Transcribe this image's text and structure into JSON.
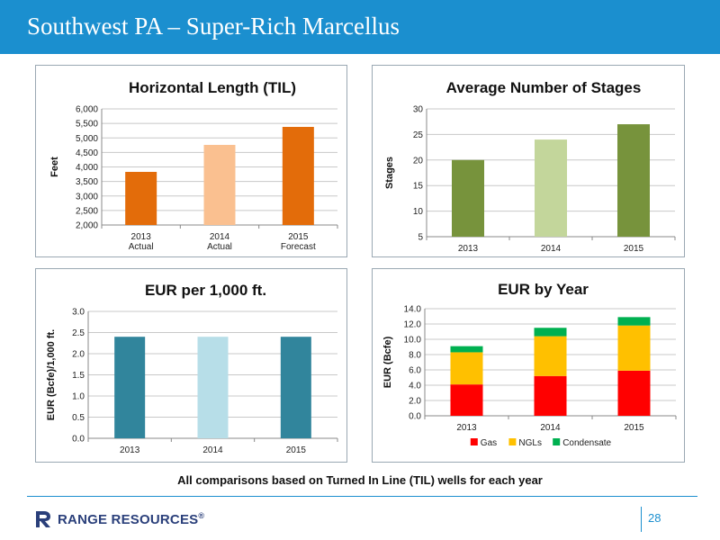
{
  "header": {
    "title": "Southwest PA – Super-Rich Marcellus"
  },
  "footnote": "All comparisons based on Turned In Line (TIL) wells for each year",
  "footer": {
    "brand": "RANGE RESOURCES",
    "brand_mark": "®",
    "page_number": "28"
  },
  "colors": {
    "header_blue": "#1B8FCF",
    "orange_dark": "#E36C0A",
    "orange_light": "#FAC090",
    "green_dark": "#77933C",
    "green_light": "#C3D69B",
    "teal_dark": "#31859C",
    "teal_light": "#B7DEE8",
    "gas": "#FF0000",
    "ngls": "#FFC000",
    "condensate": "#00B050"
  },
  "chart_data": [
    {
      "id": "til",
      "type": "bar",
      "title": "Horizontal Length (TIL)",
      "ylabel": "Feet",
      "xlabel": "",
      "categories": [
        "2013\nActual",
        "2014\nActual",
        "2015\nForecast"
      ],
      "values": [
        3830,
        4760,
        5380
      ],
      "bar_colors": [
        "#E36C0A",
        "#FAC090",
        "#E36C0A"
      ],
      "ylim": [
        2000,
        6000
      ],
      "yticks": [
        2000,
        2500,
        3000,
        3500,
        4000,
        4500,
        5000,
        5500,
        6000
      ],
      "ytick_labels": [
        "2,000",
        "2,500",
        "3,000",
        "3,500",
        "4,000",
        "4,500",
        "5,000",
        "5,500",
        "6,000"
      ],
      "grid": true
    },
    {
      "id": "stages",
      "type": "bar",
      "title": "Average Number of Stages",
      "ylabel": "Stages",
      "xlabel": "",
      "categories": [
        "2013",
        "2014",
        "2015"
      ],
      "values": [
        20,
        24,
        27
      ],
      "bar_colors": [
        "#77933C",
        "#C3D69B",
        "#77933C"
      ],
      "ylim": [
        5,
        30
      ],
      "yticks": [
        5,
        10,
        15,
        20,
        25,
        30
      ],
      "ytick_labels": [
        "5",
        "10",
        "15",
        "20",
        "25",
        "30"
      ],
      "grid": true
    },
    {
      "id": "eur1000",
      "type": "bar",
      "title": "EUR per 1,000 ft.",
      "ylabel": "EUR (Bcfe)/1,000 ft.",
      "xlabel": "",
      "categories": [
        "2013",
        "2014",
        "2015"
      ],
      "values": [
        2.4,
        2.4,
        2.4
      ],
      "bar_colors": [
        "#31859C",
        "#B7DEE8",
        "#31859C"
      ],
      "ylim": [
        0,
        3
      ],
      "yticks": [
        0,
        0.5,
        1,
        1.5,
        2,
        2.5,
        3
      ],
      "ytick_labels": [
        "0.0",
        "0.5",
        "1.0",
        "1.5",
        "2.0",
        "2.5",
        "3.0"
      ],
      "grid": true
    },
    {
      "id": "euryear",
      "type": "bar",
      "stacked": true,
      "title": "EUR by Year",
      "ylabel": "EUR (Bcfe)",
      "xlabel": "",
      "categories": [
        "2013",
        "2014",
        "2015"
      ],
      "series": [
        {
          "name": "Gas",
          "color": "#FF0000",
          "values": [
            4.1,
            5.2,
            5.9
          ]
        },
        {
          "name": "NGLs",
          "color": "#FFC000",
          "values": [
            4.2,
            5.2,
            5.9
          ]
        },
        {
          "name": "Condensate",
          "color": "#00B050",
          "values": [
            0.8,
            1.1,
            1.1
          ]
        }
      ],
      "ylim": [
        0,
        14
      ],
      "yticks": [
        0,
        2,
        4,
        6,
        8,
        10,
        12,
        14
      ],
      "ytick_labels": [
        "0.0",
        "2.0",
        "4.0",
        "6.0",
        "8.0",
        "10.0",
        "12.0",
        "14.0"
      ],
      "legend": "bottom",
      "grid": true
    }
  ]
}
